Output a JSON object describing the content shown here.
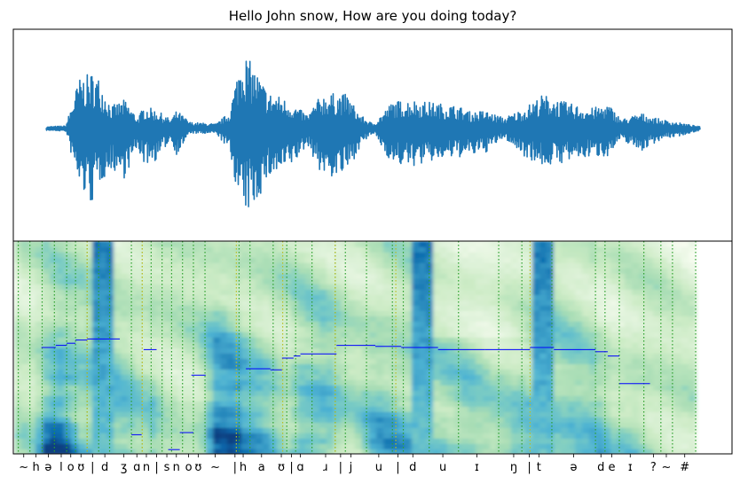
{
  "chart_data": [
    {
      "type": "line",
      "panel": "waveform",
      "title": "Hello John snow, How are you doing today?",
      "axes": "hidden",
      "color": "#1f77b4",
      "x_range": [
        0,
        1
      ],
      "y_range": [
        -1,
        1
      ],
      "envelope": {
        "x": [
          0.0,
          0.03,
          0.05,
          0.07,
          0.08,
          0.1,
          0.12,
          0.14,
          0.15,
          0.17,
          0.19,
          0.2,
          0.22,
          0.24,
          0.26,
          0.28,
          0.3,
          0.32,
          0.34,
          0.36,
          0.38,
          0.4,
          0.42,
          0.44,
          0.46,
          0.48,
          0.5,
          0.53,
          0.56,
          0.6,
          0.63,
          0.65,
          0.67,
          0.7,
          0.73,
          0.76,
          0.79,
          0.83,
          0.86,
          0.88,
          0.91,
          0.94,
          0.97,
          1.0
        ],
        "upper": [
          0.02,
          0.03,
          0.55,
          0.62,
          0.57,
          0.25,
          0.32,
          0.12,
          0.25,
          0.2,
          0.1,
          0.2,
          0.07,
          0.06,
          0.05,
          0.18,
          0.88,
          0.65,
          0.4,
          0.35,
          0.25,
          0.15,
          0.37,
          0.39,
          0.38,
          0.15,
          0.05,
          0.3,
          0.32,
          0.28,
          0.25,
          0.18,
          0.2,
          0.12,
          0.22,
          0.38,
          0.3,
          0.22,
          0.27,
          0.1,
          0.17,
          0.1,
          0.06,
          0.02
        ],
        "lower": [
          -0.02,
          -0.03,
          -0.65,
          -0.85,
          -0.62,
          -0.45,
          -0.55,
          -0.22,
          -0.4,
          -0.35,
          -0.12,
          -0.3,
          -0.05,
          -0.06,
          -0.05,
          -0.25,
          -0.98,
          -0.85,
          -0.55,
          -0.5,
          -0.38,
          -0.18,
          -0.5,
          -0.55,
          -0.5,
          -0.2,
          -0.05,
          -0.4,
          -0.42,
          -0.35,
          -0.32,
          -0.3,
          -0.28,
          -0.1,
          -0.3,
          -0.42,
          -0.38,
          -0.32,
          -0.3,
          -0.12,
          -0.25,
          -0.12,
          -0.08,
          -0.02
        ]
      }
    },
    {
      "type": "heatmap",
      "panel": "spectrogram-alignment",
      "colormap": "GnBu",
      "colors": {
        "low": "#f7fcf0",
        "mid": "#7bccc4",
        "high": "#084081",
        "pitch_line": "#0000ff",
        "boundary_green": "#2ca02c",
        "boundary_olive": "#bcbd22"
      },
      "x_range": [
        0,
        1
      ],
      "y_range": [
        0,
        1
      ],
      "tick_labels": [
        "~",
        "h",
        "ə",
        "l",
        "o",
        "ʊ",
        "|",
        "d",
        "ʒ",
        "ɑ",
        "n",
        "|",
        "s",
        "n",
        "o",
        "ʊ",
        "~",
        "|",
        "h",
        "a",
        "ʊ",
        "|",
        "ɑ",
        "ɹ",
        "|",
        "j",
        "u",
        "|",
        "d",
        "u",
        "ɪ",
        "ŋ",
        "|",
        "t",
        "ə",
        "d",
        "e",
        "ɪ",
        "?",
        "~",
        "#"
      ],
      "tick_positions": [
        0.014,
        0.032,
        0.05,
        0.069,
        0.083,
        0.098,
        0.115,
        0.133,
        0.161,
        0.18,
        0.194,
        0.209,
        0.224,
        0.238,
        0.256,
        0.27,
        0.295,
        0.324,
        0.336,
        0.363,
        0.392,
        0.407,
        0.42,
        0.457,
        0.479,
        0.494,
        0.535,
        0.563,
        0.585,
        0.629,
        0.679,
        0.733,
        0.756,
        0.77,
        0.821,
        0.861,
        0.877,
        0.904,
        0.938,
        0.957,
        0.984
      ],
      "boundaries_green": [
        0.006,
        0.023,
        0.041,
        0.059,
        0.077,
        0.09,
        0.107,
        0.124,
        0.14,
        0.172,
        0.188,
        0.201,
        0.217,
        0.231,
        0.247,
        0.263,
        0.28,
        0.33,
        0.346,
        0.38,
        0.4,
        0.413,
        0.437,
        0.471,
        0.486,
        0.517,
        0.555,
        0.571,
        0.609,
        0.652,
        0.711,
        0.745,
        0.789,
        0.853,
        0.867,
        0.888,
        0.924,
        0.949,
        0.966,
        1.0
      ],
      "boundaries_olive": [
        0.107,
        0.188,
        0.326,
        0.394,
        0.471,
        0.56,
        0.757
      ],
      "pitch_segments": [
        {
          "x0": 0.04,
          "x1": 0.061,
          "y": 0.5
        },
        {
          "x0": 0.061,
          "x1": 0.077,
          "y": 0.51
        },
        {
          "x0": 0.077,
          "x1": 0.09,
          "y": 0.52
        },
        {
          "x0": 0.09,
          "x1": 0.107,
          "y": 0.535
        },
        {
          "x0": 0.107,
          "x1": 0.155,
          "y": 0.54
        },
        {
          "x0": 0.172,
          "x1": 0.187,
          "y": 0.09
        },
        {
          "x0": 0.19,
          "x1": 0.209,
          "y": 0.49
        },
        {
          "x0": 0.226,
          "x1": 0.243,
          "y": 0.02
        },
        {
          "x0": 0.243,
          "x1": 0.263,
          "y": 0.1
        },
        {
          "x0": 0.26,
          "x1": 0.281,
          "y": 0.37
        },
        {
          "x0": 0.34,
          "x1": 0.376,
          "y": 0.4
        },
        {
          "x0": 0.376,
          "x1": 0.393,
          "y": 0.395
        },
        {
          "x0": 0.393,
          "x1": 0.41,
          "y": 0.45
        },
        {
          "x0": 0.41,
          "x1": 0.42,
          "y": 0.46
        },
        {
          "x0": 0.42,
          "x1": 0.473,
          "y": 0.47
        },
        {
          "x0": 0.473,
          "x1": 0.53,
          "y": 0.51
        },
        {
          "x0": 0.53,
          "x1": 0.568,
          "y": 0.505
        },
        {
          "x0": 0.568,
          "x1": 0.622,
          "y": 0.5
        },
        {
          "x0": 0.622,
          "x1": 0.691,
          "y": 0.49
        },
        {
          "x0": 0.691,
          "x1": 0.757,
          "y": 0.49
        },
        {
          "x0": 0.757,
          "x1": 0.792,
          "y": 0.5
        },
        {
          "x0": 0.792,
          "x1": 0.853,
          "y": 0.49
        },
        {
          "x0": 0.853,
          "x1": 0.871,
          "y": 0.48
        },
        {
          "x0": 0.871,
          "x1": 0.888,
          "y": 0.46
        },
        {
          "x0": 0.888,
          "x1": 0.933,
          "y": 0.33
        }
      ]
    }
  ]
}
